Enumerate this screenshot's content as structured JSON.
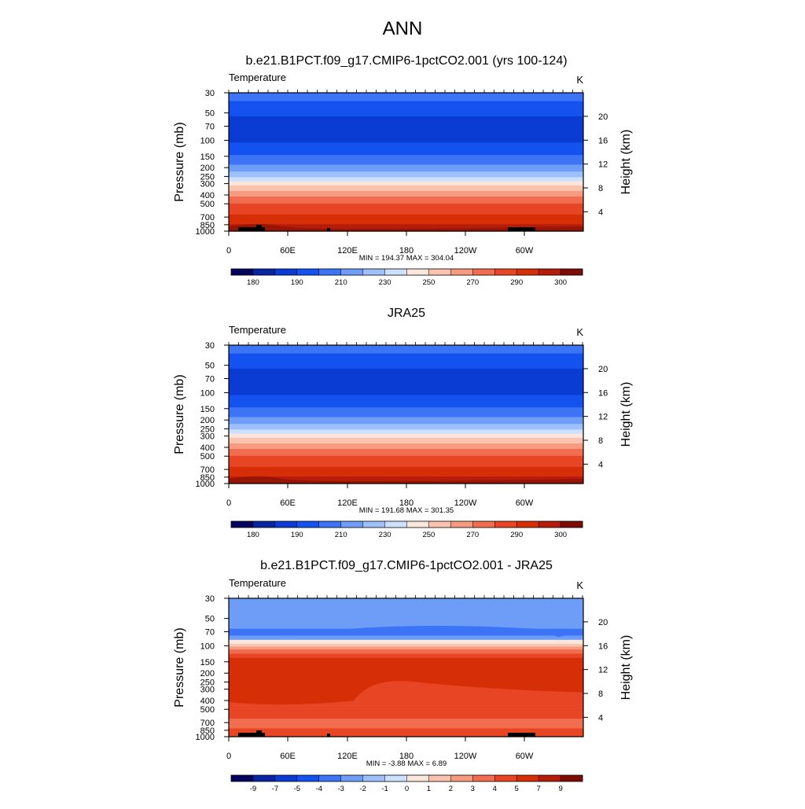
{
  "figure": {
    "title": "ANN"
  },
  "chart_data": [
    {
      "type": "heatmap",
      "title": "b.e21.B1PCT.f09_g17.CMIP6-1pctCO2.001 (yrs 100-124)",
      "field": "Temperature",
      "units": "K",
      "ylabel": "Pressure (mb)",
      "ylabel_right": "Height (km)",
      "x_ticks": [
        "0",
        "60E",
        "120E",
        "180",
        "120W",
        "60W"
      ],
      "y_ticks": [
        "30",
        "50",
        "70",
        "100",
        "150",
        "200",
        "250",
        "300",
        "400",
        "500",
        "700",
        "850",
        "1000"
      ],
      "height_ticks": [
        "20",
        "16",
        "12",
        "8",
        "4"
      ],
      "stats": "MIN = 194.37  MAX = 304.04",
      "min": 194.37,
      "max": 304.04,
      "colorbar_labels": [
        "180",
        "190",
        "210",
        "230",
        "250",
        "270",
        "290",
        "300"
      ]
    },
    {
      "type": "heatmap",
      "title": "JRA25",
      "field": "Temperature",
      "units": "K",
      "ylabel": "Pressure (mb)",
      "ylabel_right": "Height (km)",
      "x_ticks": [
        "0",
        "60E",
        "120E",
        "180",
        "120W",
        "60W"
      ],
      "y_ticks": [
        "30",
        "50",
        "70",
        "100",
        "150",
        "200",
        "250",
        "300",
        "400",
        "500",
        "700",
        "850",
        "1000"
      ],
      "height_ticks": [
        "20",
        "16",
        "12",
        "8",
        "4"
      ],
      "stats": "MIN = 191.68  MAX = 301.35",
      "min": 191.68,
      "max": 301.35,
      "colorbar_labels": [
        "180",
        "190",
        "210",
        "230",
        "250",
        "270",
        "290",
        "300"
      ]
    },
    {
      "type": "heatmap",
      "title": "b.e21.B1PCT.f09_g17.CMIP6-1pctCO2.001 - JRA25",
      "field": "Temperature",
      "units": "K",
      "ylabel": "Pressure (mb)",
      "ylabel_right": "Height (km)",
      "x_ticks": [
        "0",
        "60E",
        "120E",
        "180",
        "120W",
        "60W"
      ],
      "y_ticks": [
        "30",
        "50",
        "70",
        "100",
        "150",
        "200",
        "250",
        "300",
        "400",
        "500",
        "700",
        "850",
        "1000"
      ],
      "height_ticks": [
        "20",
        "16",
        "12",
        "8",
        "4"
      ],
      "stats": "MIN =  -3.88  MAX =   6.89",
      "min": -3.88,
      "max": 6.89,
      "colorbar_labels": [
        "-9",
        "-7",
        "-5",
        "-4",
        "-3",
        "-2",
        "-1",
        "0",
        "1",
        "2",
        "3",
        "4",
        "5",
        "7",
        "9"
      ]
    }
  ],
  "colorbar_colors": [
    "#04045e",
    "#0824a0",
    "#0a3cd4",
    "#1452f0",
    "#3d74f5",
    "#6e9df8",
    "#9ec0fa",
    "#cde0fd",
    "#fbe6dc",
    "#f9c3ad",
    "#f69b7f",
    "#f16d4f",
    "#e84525",
    "#d62f08",
    "#b51d0a",
    "#7e0c06"
  ]
}
